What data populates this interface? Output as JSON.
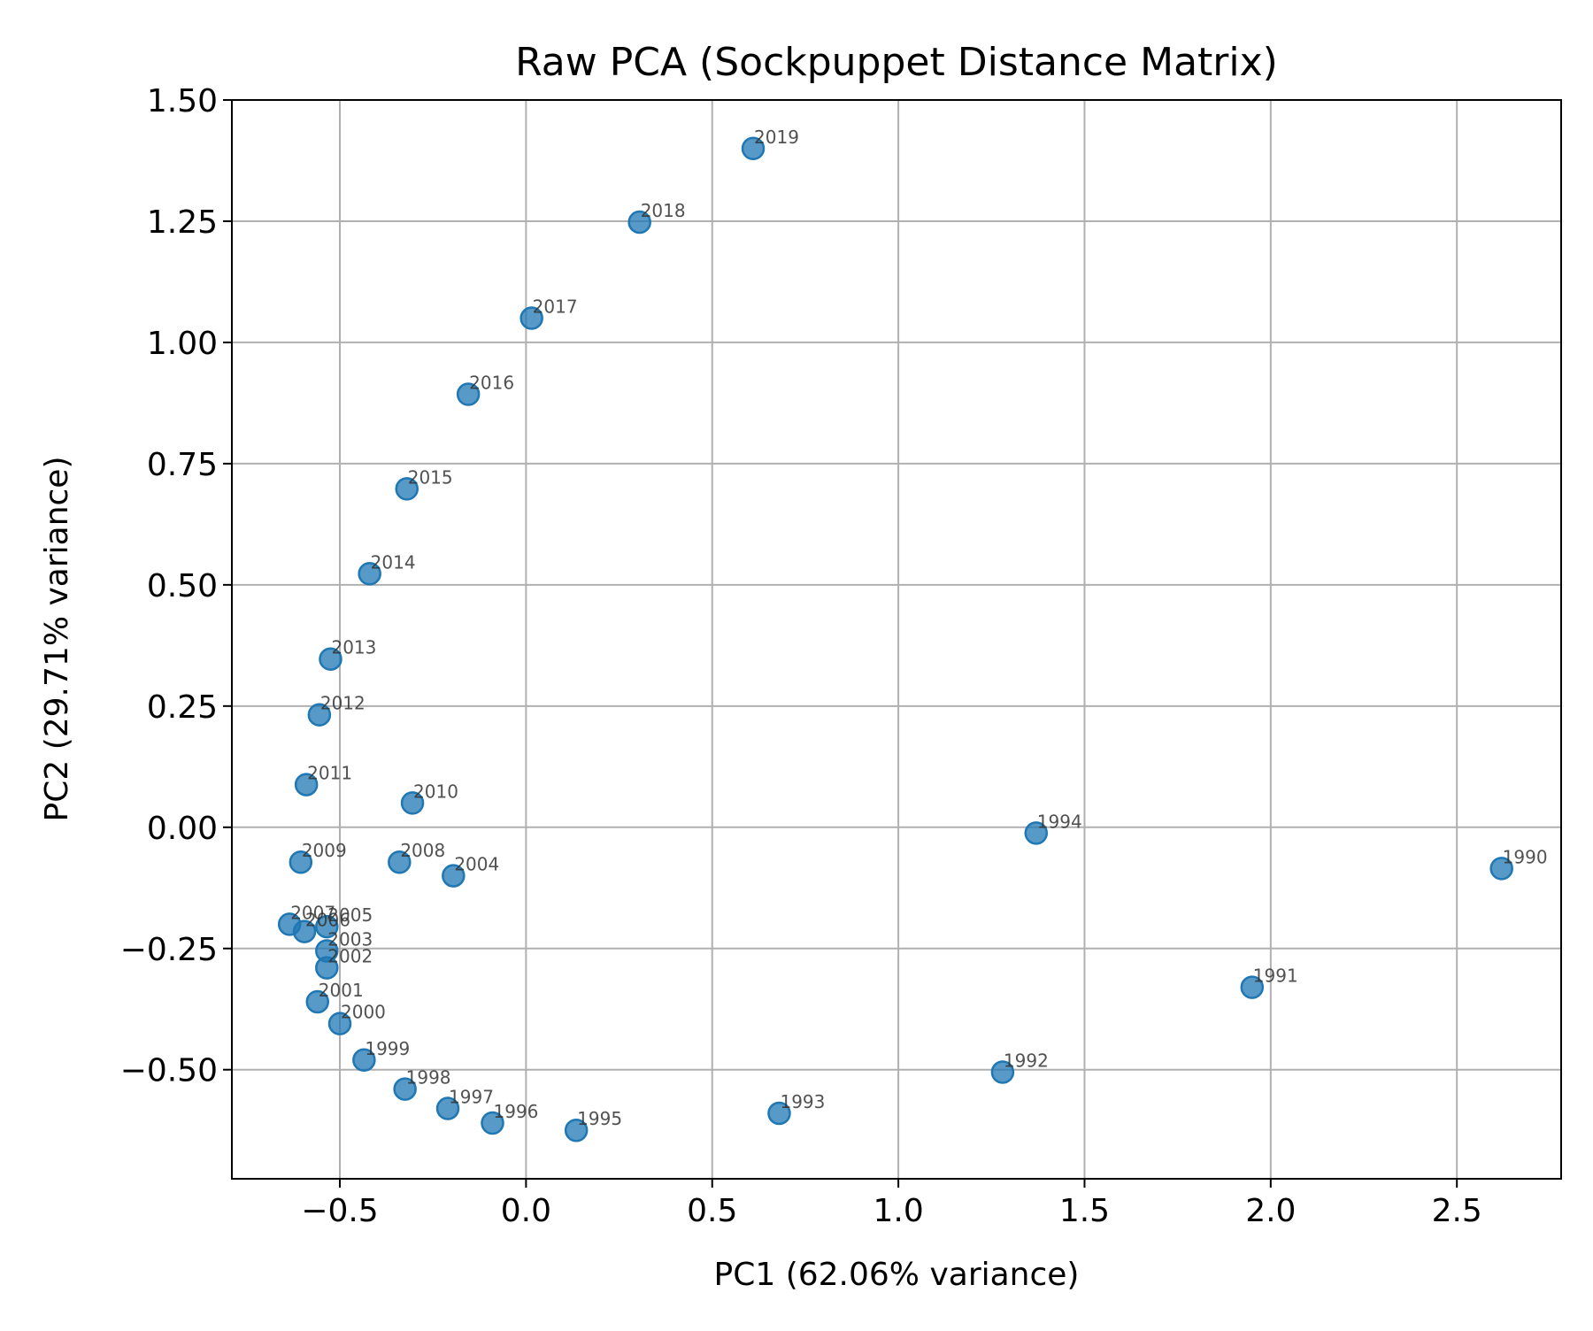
{
  "chart_data": {
    "type": "scatter",
    "title": "Raw PCA (Sockpuppet Distance Matrix)",
    "xlabel": "PC1 (62.06% variance)",
    "ylabel": "PC2 (29.71% variance)",
    "xlim": [
      -0.79,
      2.78
    ],
    "ylim": [
      -0.725,
      1.5
    ],
    "xticks": [
      -0.5,
      0.0,
      0.5,
      1.0,
      1.5,
      2.0,
      2.5
    ],
    "xtick_labels": [
      "−0.5",
      "0.0",
      "0.5",
      "1.0",
      "1.5",
      "2.0",
      "2.5"
    ],
    "yticks": [
      -0.5,
      -0.25,
      0.0,
      0.25,
      0.5,
      0.75,
      1.0,
      1.25,
      1.5
    ],
    "ytick_labels": [
      "−0.50",
      "−0.25",
      "0.00",
      "0.25",
      "0.50",
      "0.75",
      "1.00",
      "1.25",
      "1.50"
    ],
    "grid": true,
    "marker_color": "#1f77b4",
    "points": [
      {
        "label": "1990",
        "x": 2.62,
        "y": -0.085
      },
      {
        "label": "1991",
        "x": 1.95,
        "y": -0.33
      },
      {
        "label": "1992",
        "x": 1.28,
        "y": -0.505
      },
      {
        "label": "1993",
        "x": 0.68,
        "y": -0.59
      },
      {
        "label": "1994",
        "x": 1.37,
        "y": -0.012
      },
      {
        "label": "1995",
        "x": 0.135,
        "y": -0.625
      },
      {
        "label": "1996",
        "x": -0.09,
        "y": -0.61
      },
      {
        "label": "1997",
        "x": -0.21,
        "y": -0.58
      },
      {
        "label": "1998",
        "x": -0.325,
        "y": -0.54
      },
      {
        "label": "1999",
        "x": -0.435,
        "y": -0.48
      },
      {
        "label": "2000",
        "x": -0.5,
        "y": -0.405
      },
      {
        "label": "2001",
        "x": -0.56,
        "y": -0.36
      },
      {
        "label": "2002",
        "x": -0.535,
        "y": -0.29
      },
      {
        "label": "2003",
        "x": -0.535,
        "y": -0.255
      },
      {
        "label": "2004",
        "x": -0.195,
        "y": -0.1
      },
      {
        "label": "2005",
        "x": -0.535,
        "y": -0.205
      },
      {
        "label": "2006",
        "x": -0.595,
        "y": -0.215
      },
      {
        "label": "2007",
        "x": -0.635,
        "y": -0.2
      },
      {
        "label": "2008",
        "x": -0.34,
        "y": -0.072
      },
      {
        "label": "2009",
        "x": -0.605,
        "y": -0.072
      },
      {
        "label": "2010",
        "x": -0.305,
        "y": 0.05
      },
      {
        "label": "2011",
        "x": -0.59,
        "y": 0.088
      },
      {
        "label": "2012",
        "x": -0.555,
        "y": 0.232
      },
      {
        "label": "2013",
        "x": -0.525,
        "y": 0.347
      },
      {
        "label": "2014",
        "x": -0.42,
        "y": 0.523
      },
      {
        "label": "2015",
        "x": -0.32,
        "y": 0.698
      },
      {
        "label": "2016",
        "x": -0.155,
        "y": 0.893
      },
      {
        "label": "2017",
        "x": 0.015,
        "y": 1.05
      },
      {
        "label": "2018",
        "x": 0.305,
        "y": 1.248
      },
      {
        "label": "2019",
        "x": 0.61,
        "y": 1.4
      }
    ]
  }
}
